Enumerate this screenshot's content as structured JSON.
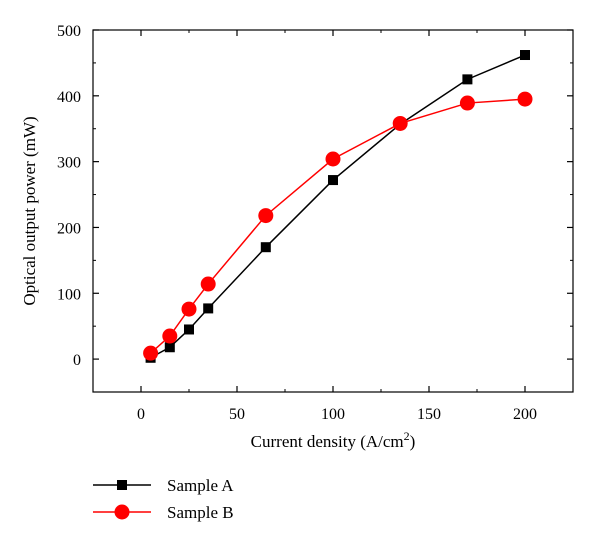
{
  "chart_data": {
    "type": "line",
    "title": "",
    "xlabel": "Current density (A/cm",
    "xlabel_superscript": "2",
    "xlabel_suffix": ")",
    "ylabel": "Optical output power (mW)",
    "xlim": [
      -25,
      225
    ],
    "ylim": [
      -50,
      500
    ],
    "xticks": [
      0,
      50,
      100,
      150,
      200
    ],
    "yticks": [
      0,
      100,
      200,
      300,
      400,
      500
    ],
    "grid": false,
    "legend_position": "bottom-left",
    "series": [
      {
        "name": "Sample A",
        "color": "#000000",
        "marker": "square",
        "x": [
          5,
          15,
          25,
          35,
          65,
          100,
          135,
          170,
          200
        ],
        "y": [
          2,
          18,
          45,
          77,
          170,
          272,
          357,
          425,
          462
        ]
      },
      {
        "name": "Sample B",
        "color": "#ff0000",
        "marker": "circle",
        "x": [
          5,
          15,
          25,
          35,
          65,
          100,
          135,
          170,
          200
        ],
        "y": [
          9,
          35,
          76,
          114,
          218,
          304,
          358,
          389,
          395
        ]
      }
    ]
  }
}
